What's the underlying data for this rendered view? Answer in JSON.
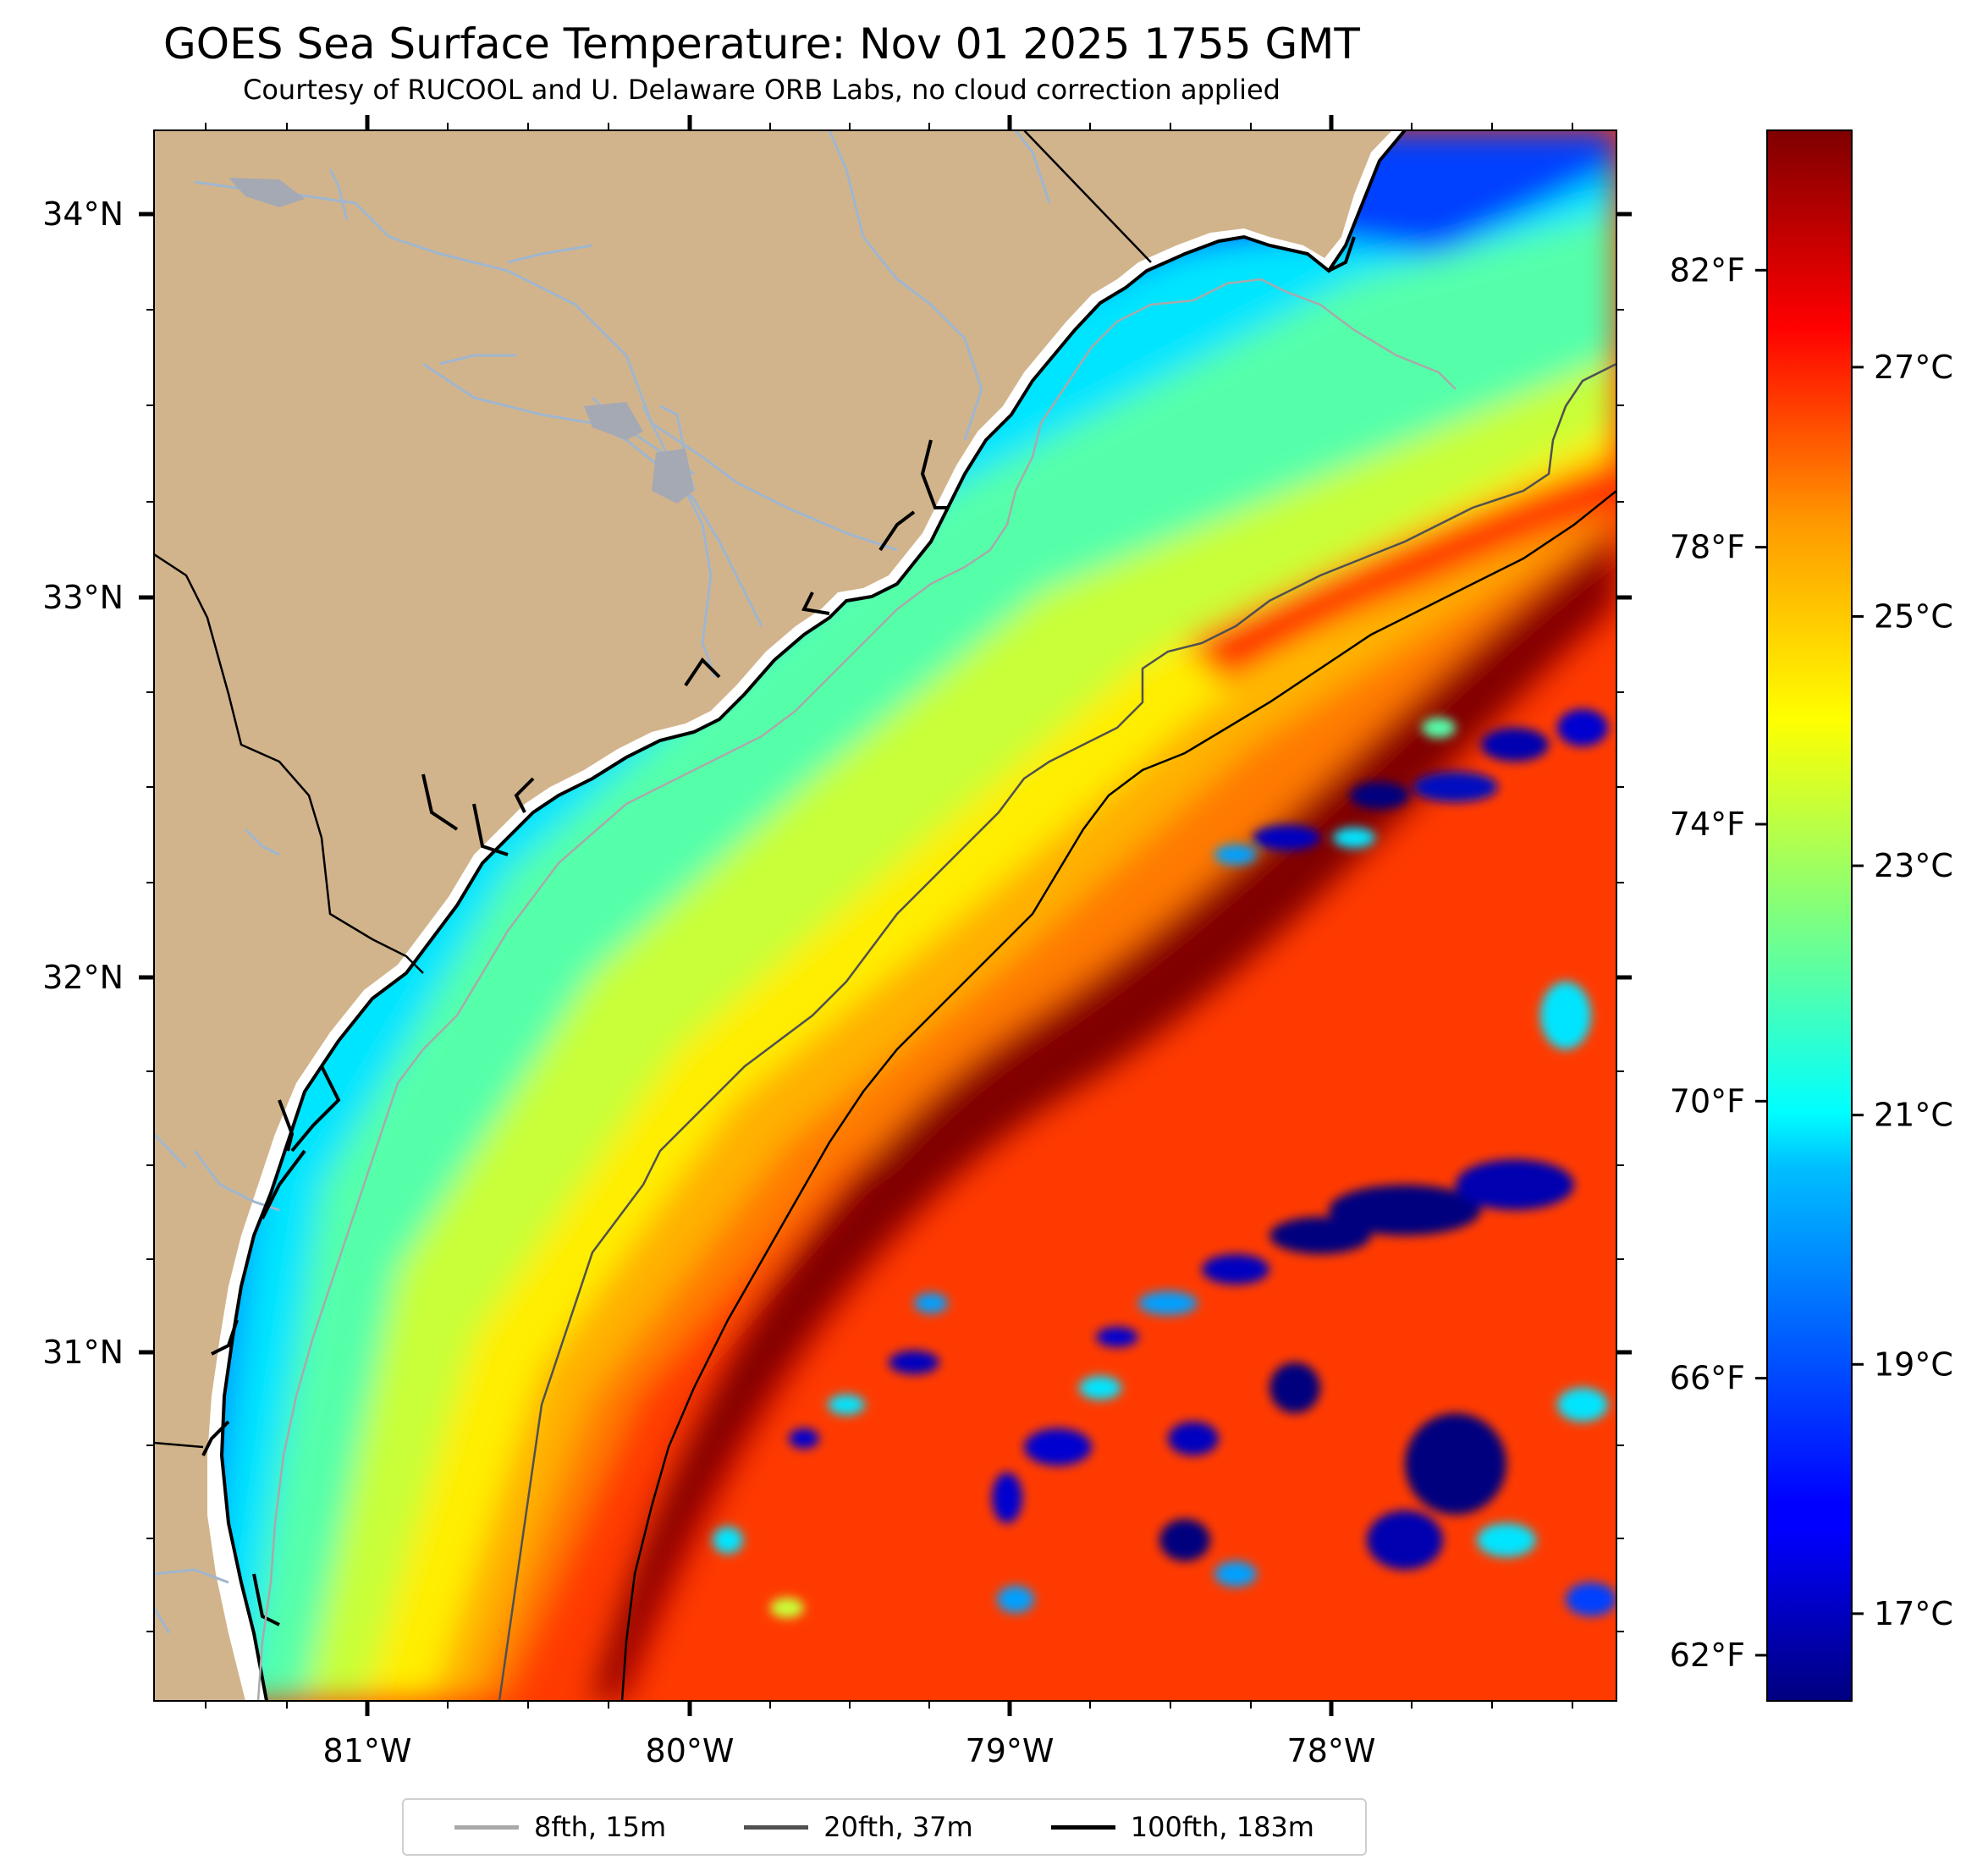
{
  "title": "GOES Sea Surface Temperature: Nov 01 2025 1755 GMT",
  "subtitle": "Courtesy of RUCOOL and U. Delaware ORB Labs, no cloud correction applied",
  "map": {
    "type": "heatmap",
    "region": "South Carolina / Georgia coast, western Atlantic",
    "lon_range": [
      -81.67,
      -77.1
    ],
    "lat_range": [
      30.1,
      34.22
    ],
    "lon_ticks": [
      "81°W",
      "80°W",
      "79°W",
      "78°W"
    ],
    "lat_ticks": [
      "34°N",
      "33°N",
      "32°N",
      "31°N"
    ],
    "colors": {
      "land": "#d2b48c",
      "coast": "#000000",
      "rivers": "#9fb6cf",
      "no_data": "#ffffff"
    },
    "colormap": "jet"
  },
  "colorbar": {
    "celsius_ticks": [
      "27°C",
      "25°C",
      "23°C",
      "21°C",
      "19°C",
      "17°C"
    ],
    "fahrenheit_ticks": [
      "82°F",
      "78°F",
      "74°F",
      "70°F",
      "66°F",
      "62°F"
    ],
    "c_range": [
      16.3,
      28.9
    ]
  },
  "legend": {
    "items": [
      {
        "label": "8fth, 15m",
        "color": "#a9a9a9"
      },
      {
        "label": "20fth, 37m",
        "color": "#505050"
      },
      {
        "label": "100fth, 183m",
        "color": "#000000"
      }
    ]
  }
}
